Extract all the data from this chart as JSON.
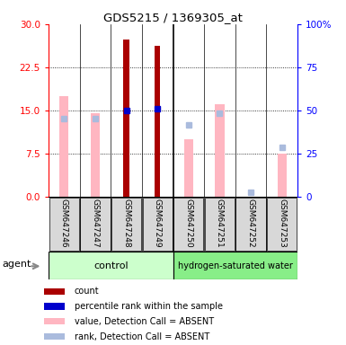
{
  "title": "GDS5215 / 1369305_at",
  "samples": [
    "GSM647246",
    "GSM647247",
    "GSM647248",
    "GSM647249",
    "GSM647250",
    "GSM647251",
    "GSM647252",
    "GSM647253"
  ],
  "red_bars": [
    0,
    0,
    27.3,
    26.2,
    0,
    0,
    0,
    0
  ],
  "pink_bars": [
    17.5,
    14.5,
    0,
    0,
    10.0,
    16.0,
    0,
    7.5
  ],
  "blue_squares_y": [
    null,
    null,
    15.0,
    15.3,
    null,
    null,
    null,
    null
  ],
  "light_blue_squares_y": [
    13.5,
    13.5,
    null,
    null,
    12.5,
    14.5,
    0.8,
    8.5
  ],
  "left_ylim": [
    0,
    30
  ],
  "right_ylim": [
    0,
    100
  ],
  "left_yticks": [
    0,
    7.5,
    15,
    22.5,
    30
  ],
  "right_yticks": [
    0,
    25,
    50,
    75,
    100
  ],
  "right_yticklabels": [
    "0",
    "25",
    "50",
    "75",
    "100%"
  ],
  "red_color": "#AA0000",
  "pink_color": "#FFB6C1",
  "blue_color": "#0000CC",
  "light_blue_color": "#AABBDD",
  "plot_bg_color": "#FFFFFF",
  "label_bg_color": "#C8C8C8",
  "control_color": "#CCFFCC",
  "hyd_color": "#88EE88",
  "legend_labels": [
    "count",
    "percentile rank within the sample",
    "value, Detection Call = ABSENT",
    "rank, Detection Call = ABSENT"
  ]
}
